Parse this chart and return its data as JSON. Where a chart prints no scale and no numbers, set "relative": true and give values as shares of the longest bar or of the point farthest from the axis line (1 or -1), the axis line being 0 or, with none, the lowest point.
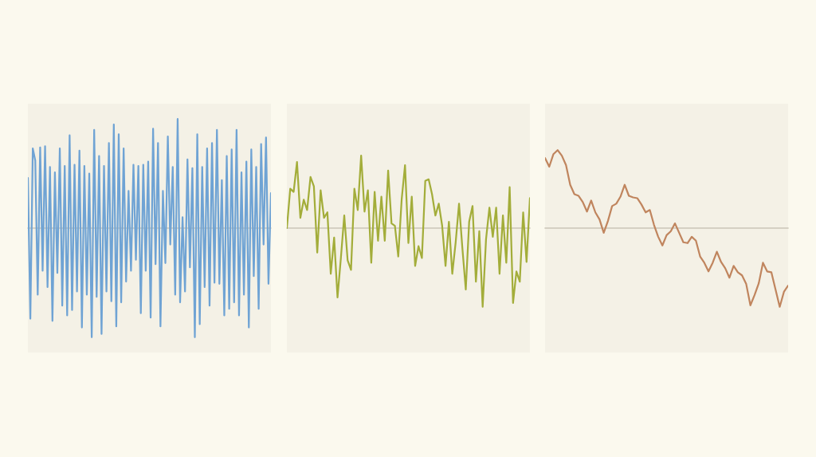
{
  "chart_data": [
    {
      "type": "line",
      "relative": true,
      "categories": [
        null,
        null,
        null,
        null,
        null,
        null,
        null,
        null,
        null,
        null,
        null,
        null,
        null,
        null,
        null,
        null,
        null,
        null,
        null,
        null,
        null,
        null,
        null,
        null,
        null,
        null,
        null,
        null,
        null,
        null,
        null,
        null,
        null,
        null,
        null,
        null,
        null,
        null,
        null,
        null,
        null,
        null,
        null,
        null,
        null,
        null,
        null,
        null,
        null,
        null,
        null,
        null,
        null,
        null,
        null,
        null,
        null,
        null,
        null,
        null,
        null,
        null,
        null,
        null,
        null,
        null,
        null,
        null,
        null,
        null,
        null,
        null,
        null,
        null,
        null,
        null,
        null,
        null,
        null,
        null,
        null,
        null,
        null,
        null,
        null,
        null,
        null,
        null,
        null,
        null,
        null,
        null,
        null,
        null,
        null,
        null,
        null,
        null,
        null,
        null
      ],
      "series": [
        {
          "color": "#6fa3d4",
          "values": [
            0.46,
            -0.83,
            0.73,
            0.62,
            -0.61,
            0.74,
            -0.39,
            0.75,
            -0.54,
            0.56,
            -0.85,
            0.51,
            -0.41,
            0.73,
            -0.71,
            0.57,
            -0.8,
            0.85,
            -0.75,
            0.58,
            -0.58,
            0.71,
            -0.91,
            0.57,
            -0.61,
            0.5,
            -1.0,
            0.9,
            -0.63,
            0.66,
            -0.97,
            0.57,
            -0.58,
            0.78,
            -0.67,
            0.95,
            -0.9,
            0.86,
            -0.68,
            0.73,
            -0.49,
            0.34,
            -0.39,
            0.58,
            -0.29,
            0.57,
            -0.78,
            0.58,
            -0.39,
            0.61,
            -0.82,
            0.91,
            -0.33,
            0.78,
            -0.9,
            0.34,
            -0.32,
            0.84,
            -0.15,
            0.56,
            -0.61,
            1.0,
            -0.68,
            0.1,
            -0.58,
            0.63,
            -0.36,
            0.55,
            -1.0,
            0.86,
            -0.88,
            0.56,
            -0.54,
            0.73,
            -0.71,
            0.78,
            -0.5,
            0.9,
            -0.51,
            0.44,
            -0.8,
            0.66,
            -0.74,
            0.72,
            -0.68,
            0.9,
            -0.8,
            0.51,
            -0.61,
            0.61,
            -0.91,
            0.72,
            -0.44,
            0.56,
            -0.74,
            0.77,
            -0.15,
            0.83,
            -0.51,
            0.32
          ]
        }
      ]
    },
    {
      "type": "line",
      "relative": true,
      "categories": [
        null,
        null,
        null,
        null,
        null,
        null,
        null,
        null,
        null,
        null,
        null,
        null,
        null,
        null,
        null,
        null,
        null,
        null,
        null,
        null,
        null,
        null,
        null,
        null,
        null,
        null,
        null,
        null,
        null,
        null,
        null,
        null,
        null,
        null,
        null,
        null,
        null,
        null,
        null,
        null,
        null,
        null,
        null,
        null,
        null,
        null,
        null,
        null,
        null,
        null,
        null,
        null,
        null,
        null,
        null,
        null,
        null,
        null,
        null,
        null,
        null,
        null,
        null,
        null,
        null,
        null,
        null,
        null,
        null,
        null,
        null,
        null,
        null
      ],
      "series": [
        {
          "color": "#a3ad3a",
          "values": [
            0,
            0.5,
            0.46,
            0.84,
            0.13,
            0.36,
            0.23,
            0.65,
            0.53,
            -0.31,
            0.48,
            0.13,
            0.2,
            -0.58,
            -0.12,
            -0.88,
            -0.38,
            0.16,
            -0.41,
            -0.53,
            0.5,
            0.23,
            0.92,
            0.21,
            0.48,
            -0.44,
            0.46,
            -0.16,
            0.4,
            -0.16,
            0.73,
            0.06,
            0.03,
            -0.36,
            0.36,
            0.8,
            -0.19,
            0.4,
            -0.48,
            -0.23,
            -0.38,
            0.6,
            0.62,
            0.43,
            0.16,
            0.31,
            0.03,
            -0.48,
            0.08,
            -0.58,
            -0.18,
            0.31,
            -0.26,
            -0.78,
            0.08,
            0.28,
            -0.68,
            -0.04,
            -1.0,
            -0.14,
            0.26,
            -0.11,
            0.26,
            -0.58,
            0.16,
            -0.44,
            0.52,
            -0.95,
            -0.55,
            -0.68,
            0.2,
            -0.43,
            0.38
          ]
        }
      ]
    },
    {
      "type": "line",
      "relative": true,
      "categories": [
        null,
        null,
        null,
        null,
        null,
        null,
        null,
        null,
        null,
        null,
        null,
        null,
        null,
        null,
        null,
        null,
        null,
        null,
        null,
        null,
        null,
        null,
        null,
        null,
        null,
        null,
        null,
        null,
        null,
        null,
        null,
        null,
        null,
        null,
        null,
        null,
        null,
        null,
        null,
        null,
        null,
        null,
        null,
        null,
        null,
        null,
        null,
        null,
        null,
        null,
        null,
        null,
        null,
        null,
        null,
        null,
        null,
        null,
        null
      ],
      "series": [
        {
          "color": "#c0855e",
          "values": [
            0.89,
            0.78,
            0.94,
            0.99,
            0.92,
            0.8,
            0.55,
            0.43,
            0.41,
            0.33,
            0.21,
            0.35,
            0.2,
            0.11,
            -0.06,
            0.09,
            0.28,
            0.31,
            0.4,
            0.55,
            0.41,
            0.39,
            0.38,
            0.3,
            0.2,
            0.23,
            0.04,
            -0.11,
            -0.22,
            -0.09,
            -0.04,
            0.06,
            -0.06,
            -0.18,
            -0.19,
            -0.11,
            -0.16,
            -0.36,
            -0.44,
            -0.55,
            -0.44,
            -0.3,
            -0.43,
            -0.51,
            -0.63,
            -0.48,
            -0.56,
            -0.6,
            -0.71,
            -0.98,
            -0.85,
            -0.7,
            -0.44,
            -0.55,
            -0.56,
            -0.78,
            -1.0,
            -0.81,
            -0.73
          ]
        }
      ]
    }
  ]
}
